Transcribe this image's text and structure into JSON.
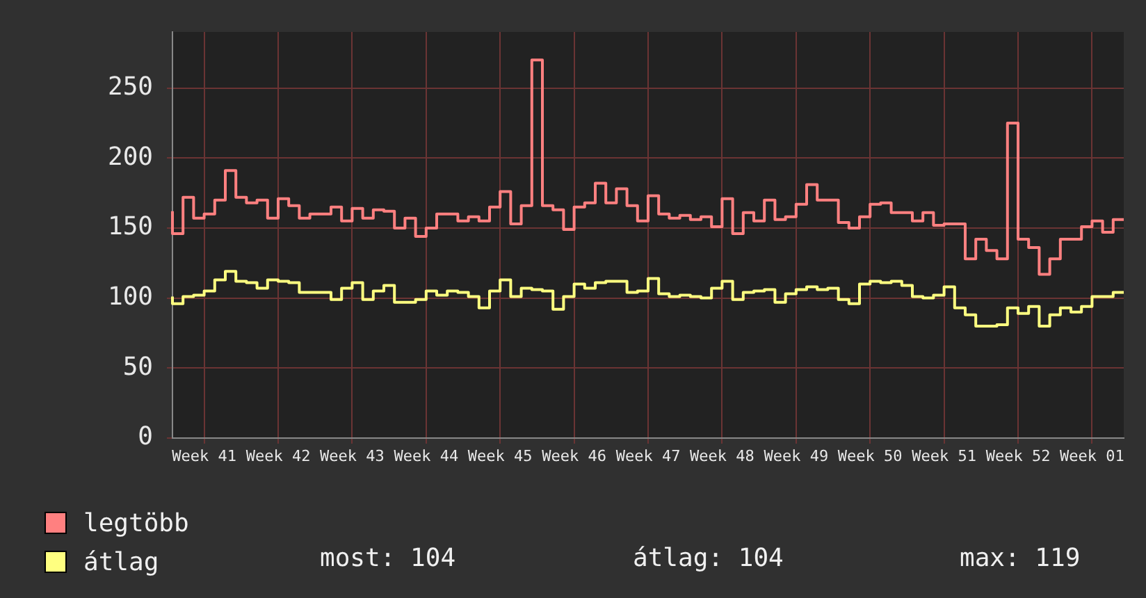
{
  "chart_data": {
    "type": "step",
    "categories": [
      null,
      null,
      null,
      "Week 41",
      null,
      null,
      null,
      null,
      null,
      null,
      "Week 42",
      null,
      null,
      null,
      null,
      null,
      null,
      "Week 43",
      null,
      null,
      null,
      null,
      null,
      null,
      "Week 44",
      null,
      null,
      null,
      null,
      null,
      null,
      "Week 45",
      null,
      null,
      null,
      null,
      null,
      null,
      "Week 46",
      null,
      null,
      null,
      null,
      null,
      null,
      "Week 47",
      null,
      null,
      null,
      null,
      null,
      null,
      "Week 48",
      null,
      null,
      null,
      null,
      null,
      null,
      "Week 49",
      null,
      null,
      null,
      null,
      null,
      null,
      "Week 50",
      null,
      null,
      null,
      null,
      null,
      null,
      "Week 51",
      null,
      null,
      null,
      null,
      null,
      null,
      "Week 52",
      null,
      null,
      null,
      null,
      null,
      null,
      "Week 01",
      null,
      null,
      null
    ],
    "series": [
      {
        "name": "legtöbb",
        "color": "#ff8080",
        "values": [
          162,
          146,
          172,
          157,
          160,
          170,
          191,
          172,
          168,
          170,
          157,
          171,
          166,
          157,
          160,
          160,
          165,
          155,
          164,
          157,
          163,
          162,
          150,
          157,
          144,
          150,
          160,
          160,
          155,
          158,
          155,
          165,
          176,
          153,
          166,
          270,
          166,
          163,
          149,
          165,
          168,
          182,
          168,
          178,
          166,
          155,
          173,
          160,
          157,
          159,
          156,
          158,
          151,
          171,
          146,
          161,
          155,
          170,
          156,
          158,
          167,
          181,
          170,
          170,
          154,
          150,
          158,
          167,
          168,
          161,
          161,
          155,
          161,
          152,
          153,
          153,
          128,
          142,
          134,
          128,
          225,
          142,
          136,
          117,
          128,
          142,
          142,
          151,
          155,
          147,
          156
        ]
      },
      {
        "name": "átlag",
        "color": "#ffff80",
        "values": [
          101,
          96,
          101,
          102,
          105,
          113,
          119,
          112,
          111,
          107,
          113,
          112,
          111,
          104,
          104,
          104,
          99,
          107,
          111,
          99,
          105,
          109,
          97,
          97,
          99,
          105,
          102,
          105,
          104,
          101,
          93,
          105,
          113,
          101,
          107,
          106,
          105,
          92,
          101,
          110,
          107,
          111,
          112,
          112,
          104,
          105,
          114,
          103,
          101,
          102,
          101,
          100,
          107,
          112,
          99,
          104,
          105,
          106,
          97,
          103,
          106,
          108,
          106,
          107,
          99,
          96,
          110,
          112,
          111,
          112,
          109,
          101,
          100,
          102,
          108,
          93,
          88,
          80,
          80,
          81,
          93,
          89,
          94,
          80,
          88,
          93,
          90,
          94,
          101,
          101,
          104
        ]
      }
    ],
    "ylim": [
      0,
      290
    ],
    "yticks": [
      0,
      50,
      100,
      150,
      200,
      250
    ],
    "grid": true,
    "legend": "bottom",
    "annotations": [
      "most: 104",
      "átlag: 104",
      "max: 119"
    ]
  }
}
